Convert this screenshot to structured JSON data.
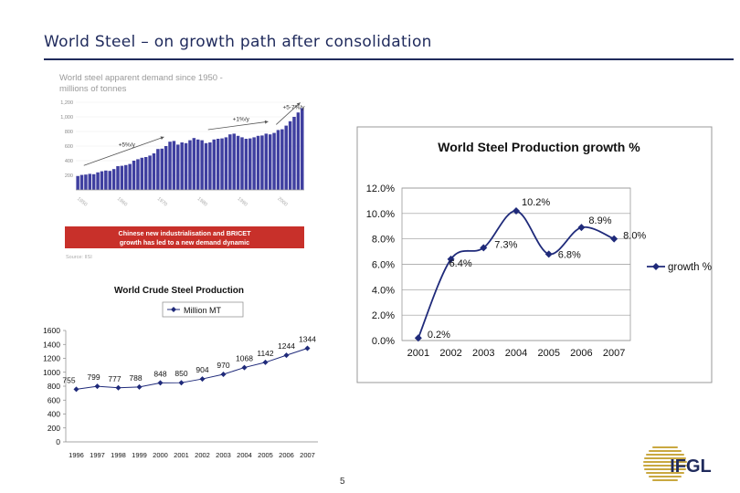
{
  "slide": {
    "title": "World Steel – on growth path after consolidation",
    "page_number": "5"
  },
  "logo": {
    "text": "IFGL"
  },
  "colors": {
    "title": "#1f2a5c",
    "bars": "#3f3fa0",
    "banner": "#c8302a",
    "line": "#1f2a7a",
    "marker": "#1f2a7a"
  },
  "chart_data": [
    {
      "type": "bar",
      "title": "World steel apparent demand since 1950 - millions of tonnes",
      "xlabel": "",
      "ylabel": "",
      "ylim": [
        0,
        1200
      ],
      "yticks": [
        "1,200",
        "1,000",
        "800",
        "600",
        "400",
        "200"
      ],
      "xticks": [
        "1950",
        "1960",
        "1970",
        "1980",
        "1990",
        "2000"
      ],
      "categories": [
        "1950",
        "1951",
        "1952",
        "1953",
        "1954",
        "1955",
        "1956",
        "1957",
        "1958",
        "1959",
        "1960",
        "1961",
        "1962",
        "1963",
        "1964",
        "1965",
        "1966",
        "1967",
        "1968",
        "1969",
        "1970",
        "1971",
        "1972",
        "1973",
        "1974",
        "1975",
        "1976",
        "1977",
        "1978",
        "1979",
        "1980",
        "1981",
        "1982",
        "1983",
        "1984",
        "1985",
        "1986",
        "1987",
        "1988",
        "1989",
        "1990",
        "1991",
        "1992",
        "1993",
        "1994",
        "1995",
        "1996",
        "1997",
        "1998",
        "1999",
        "2000",
        "2001",
        "2002",
        "2003",
        "2004",
        "2005",
        "2006"
      ],
      "values": [
        190,
        205,
        210,
        220,
        215,
        240,
        255,
        265,
        260,
        285,
        325,
        330,
        340,
        355,
        400,
        420,
        440,
        450,
        470,
        500,
        560,
        565,
        600,
        660,
        670,
        620,
        650,
        640,
        680,
        710,
        690,
        680,
        640,
        650,
        690,
        700,
        705,
        720,
        760,
        770,
        740,
        720,
        700,
        705,
        720,
        740,
        745,
        770,
        760,
        780,
        820,
        830,
        880,
        940,
        1000,
        1060,
        1120
      ],
      "annotations": [
        "+5%/y",
        "+1%/y",
        "+5-7%/y"
      ],
      "banner": "Chinese new industrialisation and BRICET growth has led to a new demand dynamic",
      "source": "Source: IISI"
    },
    {
      "type": "line",
      "title": "World Steel Production growth %",
      "xlabel": "",
      "ylabel": "",
      "ylim": [
        0,
        12
      ],
      "yticks": [
        "12.0%",
        "10.0%",
        "8.0%",
        "6.0%",
        "4.0%",
        "2.0%",
        "0.0%"
      ],
      "categories": [
        "2001",
        "2002",
        "2003",
        "2004",
        "2005",
        "2006",
        "2007"
      ],
      "series": [
        {
          "name": "growth %",
          "values": [
            0.2,
            6.4,
            7.3,
            10.2,
            6.8,
            8.9,
            8.0
          ],
          "labels": [
            "0.2%",
            "6.4%",
            "7.3%",
            "10.2%",
            "6.8%",
            "8.9%",
            "8.0%"
          ]
        }
      ],
      "legend": "right"
    },
    {
      "type": "line",
      "title": "World Crude Steel Production",
      "xlabel": "",
      "ylabel": "",
      "ylim": [
        0,
        1600
      ],
      "yticks": [
        "1600",
        "1400",
        "1200",
        "1000",
        "800",
        "600",
        "400",
        "200",
        "0"
      ],
      "categories": [
        "1996",
        "1997",
        "1998",
        "1999",
        "2000",
        "2001",
        "2002",
        "2003",
        "2004",
        "2005",
        "2006",
        "2007"
      ],
      "series": [
        {
          "name": "Million MT",
          "values": [
            755,
            799,
            777,
            788,
            848,
            850,
            904,
            970,
            1068,
            1142,
            1244,
            1344
          ],
          "labels": [
            "755",
            "799",
            "777",
            "788",
            "848",
            "850",
            "904",
            "970",
            "1068",
            "1142",
            "1244",
            "1344"
          ]
        }
      ],
      "legend": "top"
    }
  ]
}
